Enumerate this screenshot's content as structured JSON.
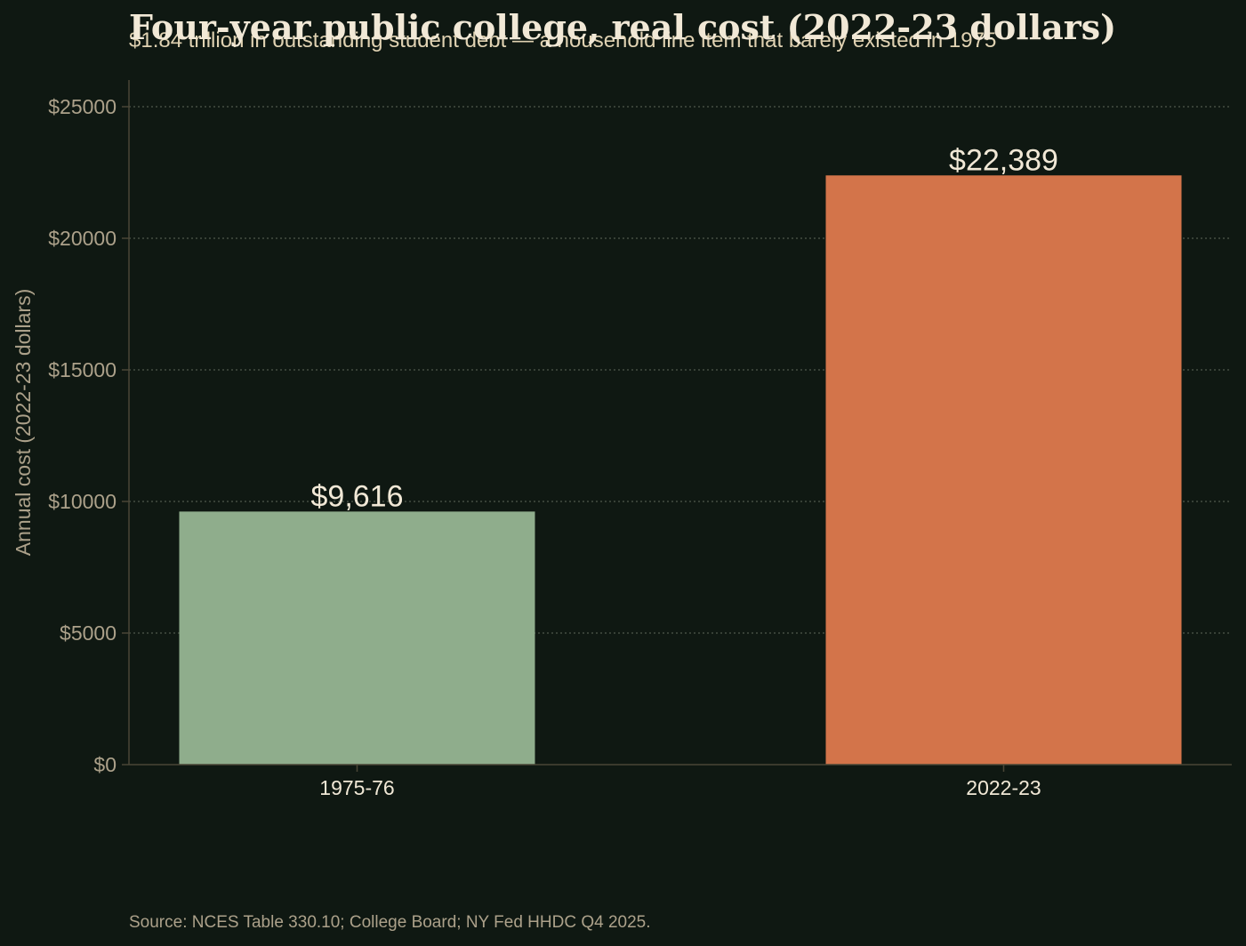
{
  "chart_data": {
    "type": "bar",
    "title": "Four-year public college, real cost (2022-23 dollars)",
    "subtitle": "$1.84 trillion in outstanding student debt — a household line item that barely existed in 1975",
    "xlabel": "",
    "ylabel": "Annual cost (2022-23 dollars)",
    "categories": [
      "1975-76",
      "2022-23"
    ],
    "values": [
      9616,
      22389
    ],
    "value_labels": [
      "$9,616",
      "$22,389"
    ],
    "bar_colors": [
      "#8fad8c",
      "#d3744a"
    ],
    "ylim": [
      0,
      26000
    ],
    "yticks": [
      0,
      5000,
      10000,
      15000,
      20000,
      25000
    ],
    "ytick_labels": [
      "$0",
      "$5000",
      "$10000",
      "$15000",
      "$20000",
      "$25000"
    ],
    "grid": "horizontal dotted",
    "legend": "none"
  },
  "footer": {
    "source": "Source: NCES Table 330.10; College Board; NY Fed HHDC Q4 2025."
  },
  "colors": {
    "background": "#0f1812",
    "axis": "#4a4636",
    "grid": "#4f574c",
    "text_primary": "#f1e8d6",
    "text_muted": "#aca18a"
  }
}
